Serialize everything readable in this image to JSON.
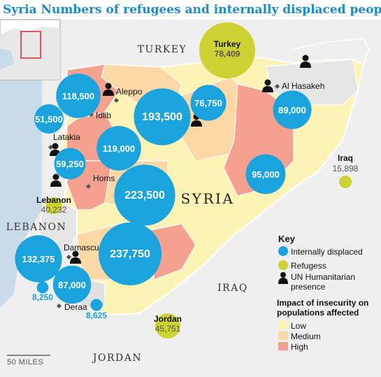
{
  "title": {
    "lead": "Syria",
    "text": "Numbers of refugees and internally displaced people"
  },
  "colors": {
    "idp": "#1aa3dd",
    "refugees": "#cdd232",
    "low": "#fdf3b5",
    "medium": "#fbd8a5",
    "high": "#f6a08f",
    "neighbour": "#efefef",
    "sea": "#c9dbe9",
    "border": "#ffffff"
  },
  "country_labels": {
    "turkey": "TURKEY",
    "syria": "SYRIA",
    "lebanon": "LEBANON",
    "iraq": "IRAQ",
    "jordan": "JORDAN"
  },
  "cities": {
    "aleppo": "Aleppo",
    "idlib": "Idlib",
    "latakia": "Latakia",
    "homs": "Homs",
    "damascus": "Damascu",
    "deraa": "Deraa",
    "al_hasakeh": "Al Hasakeh"
  },
  "idp_circles": [
    {
      "label": "118,500",
      "value": 118500
    },
    {
      "label": "51,500",
      "value": 51500
    },
    {
      "label": "193,500",
      "value": 193500
    },
    {
      "label": "76,750",
      "value": 76750
    },
    {
      "label": "89,000",
      "value": 89000
    },
    {
      "label": "119,000",
      "value": 119000
    },
    {
      "label": "59,250",
      "value": 59250
    },
    {
      "label": "95,000",
      "value": 95000
    },
    {
      "label": "223,500",
      "value": 223500
    },
    {
      "label": "237,750",
      "value": 237750
    },
    {
      "label": "132,375",
      "value": 132375
    },
    {
      "label": "87,000",
      "value": 87000
    },
    {
      "label": "8,250",
      "value": 8250
    },
    {
      "label": "8,625",
      "value": 8625
    }
  ],
  "refugees": [
    {
      "country": "Turkey",
      "value": "78,409"
    },
    {
      "country": "Iraq",
      "value": "15,898"
    },
    {
      "country": "Lebanon",
      "value": "40,232"
    },
    {
      "country": "Jordan",
      "value": "45,751"
    }
  ],
  "key": {
    "title": "Key",
    "idp": "Internally displaced",
    "refugees": "Refugess",
    "un_line1": "UN Humanitarian",
    "un_line2": "presence",
    "impact_title1": "Impact of insecurity on",
    "impact_title2": "populations affected",
    "low": "Low",
    "medium": "Medium",
    "high": "High"
  },
  "scale": "50 MILES"
}
